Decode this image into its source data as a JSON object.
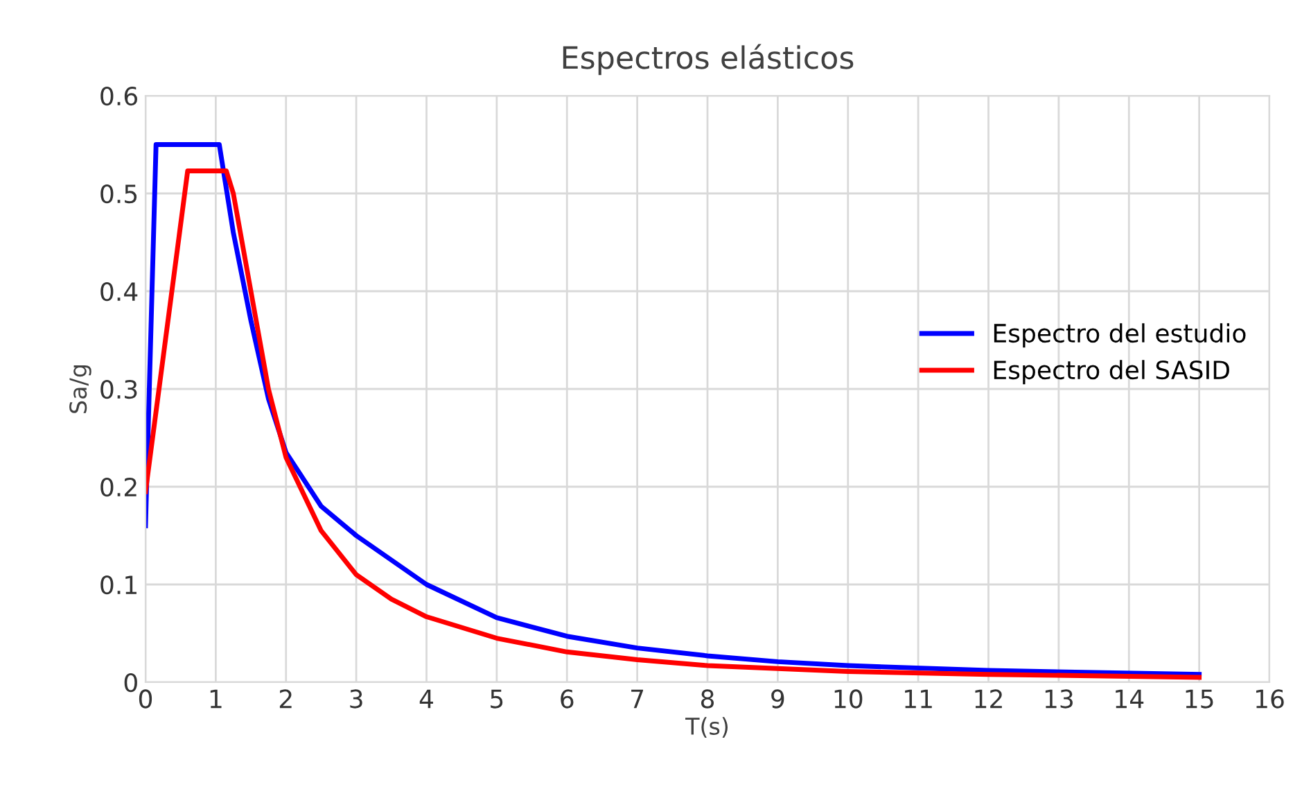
{
  "chart_data": {
    "type": "line",
    "title": "Espectros elásticos",
    "xlabel": "T(s)",
    "ylabel": "Sa/g",
    "xlim": [
      0,
      16
    ],
    "xticks": [
      0,
      1,
      2,
      3,
      4,
      5,
      6,
      7,
      8,
      9,
      10,
      11,
      12,
      13,
      14,
      15,
      16
    ],
    "ylim": [
      0,
      0.6
    ],
    "yticks": [
      0,
      0.1,
      0.2,
      0.3,
      0.4,
      0.5,
      0.6
    ],
    "grid": true,
    "legend": "right",
    "marker": "none",
    "line_style": "solid",
    "series": [
      {
        "name": "Espectro del estudio",
        "color": "#0000ff",
        "x": [
          0,
          0.15,
          1.05,
          1.25,
          1.5,
          1.75,
          2,
          2.5,
          3,
          3.5,
          4,
          5,
          6,
          7,
          8,
          9,
          10,
          12,
          15
        ],
        "values": [
          0.16,
          0.55,
          0.55,
          0.46,
          0.37,
          0.29,
          0.235,
          0.18,
          0.15,
          0.125,
          0.1,
          0.066,
          0.047,
          0.035,
          0.027,
          0.021,
          0.017,
          0.012,
          0.008
        ]
      },
      {
        "name": "Espectro del SASID",
        "color": "#ff0000",
        "x": [
          0,
          0.6,
          1.15,
          1.25,
          1.5,
          1.75,
          2,
          2.5,
          3,
          3.5,
          4,
          5,
          6,
          7,
          8,
          10,
          12,
          15
        ],
        "values": [
          0.195,
          0.523,
          0.523,
          0.5,
          0.4,
          0.3,
          0.23,
          0.155,
          0.11,
          0.085,
          0.067,
          0.045,
          0.031,
          0.023,
          0.017,
          0.011,
          0.008,
          0.005
        ]
      }
    ]
  }
}
